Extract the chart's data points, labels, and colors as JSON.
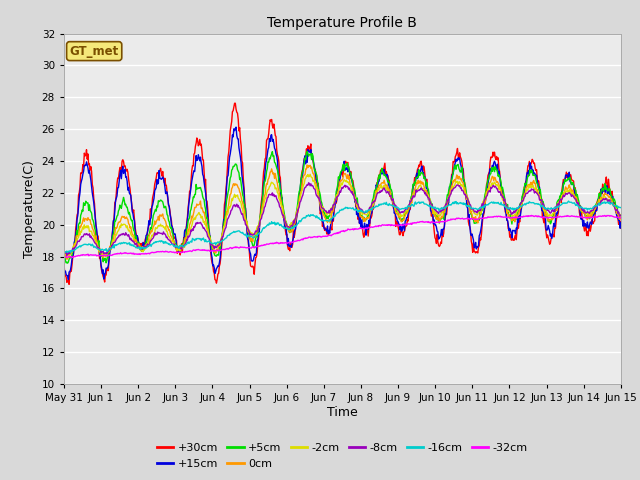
{
  "title": "Temperature Profile B",
  "xlabel": "Time",
  "ylabel": "Temperature(C)",
  "ylim": [
    10,
    32
  ],
  "yticks": [
    10,
    12,
    14,
    16,
    18,
    20,
    22,
    24,
    26,
    28,
    30,
    32
  ],
  "background_color": "#d9d9d9",
  "plot_bg_color": "#ebebeb",
  "annotation_text": "GT_met",
  "annotation_color": "#7a4f00",
  "annotation_bg": "#f5e87a",
  "series": [
    {
      "label": "+30cm",
      "color": "#ff0000",
      "lw": 1.0
    },
    {
      "label": "+15cm",
      "color": "#0000dd",
      "lw": 1.0
    },
    {
      "label": "+5cm",
      "color": "#00dd00",
      "lw": 1.0
    },
    {
      "label": "0cm",
      "color": "#ff9900",
      "lw": 1.0
    },
    {
      "label": "-2cm",
      "color": "#dddd00",
      "lw": 1.0
    },
    {
      "label": "-8cm",
      "color": "#9900bb",
      "lw": 1.0
    },
    {
      "label": "-16cm",
      "color": "#00cccc",
      "lw": 1.0
    },
    {
      "label": "-32cm",
      "color": "#ff00ff",
      "lw": 1.0
    }
  ],
  "xtick_labels": [
    "May 31",
    "Jun 1",
    "Jun 2",
    "Jun 3",
    "Jun 4",
    "Jun 5",
    "Jun 6",
    "Jun 7",
    "Jun 8",
    "Jun 9",
    "Jun 10",
    "Jun 11",
    "Jun 12",
    "Jun 13",
    "Jun 14",
    "Jun 15"
  ],
  "n_days": 16,
  "pts_per_day": 48
}
